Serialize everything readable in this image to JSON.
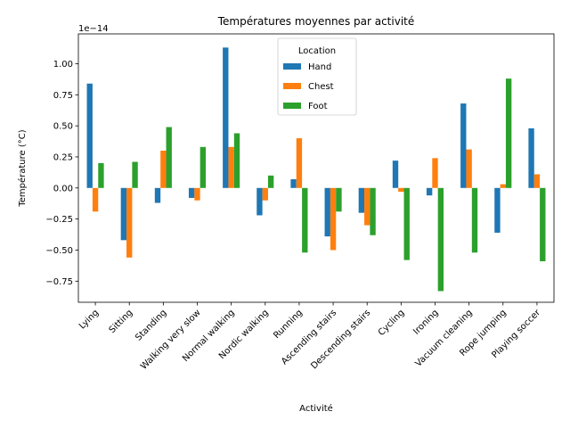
{
  "chart_data": {
    "type": "bar",
    "title": "Températures moyennes par activité",
    "xlabel": "Activité",
    "ylabel": "Température (°C)",
    "y_offset_label": "1e−14",
    "y_scale": 1e-14,
    "ylim": [
      -0.92,
      1.24
    ],
    "yticks": [
      -0.75,
      -0.5,
      -0.25,
      0.0,
      0.25,
      0.5,
      0.75,
      1.0
    ],
    "ytick_labels": [
      "−0.75",
      "−0.50",
      "−0.25",
      "0.00",
      "0.25",
      "0.50",
      "0.75",
      "1.00"
    ],
    "categories": [
      "Lying",
      "Sitting",
      "Standing",
      "Walking very slow",
      "Normal walking",
      "Nordic walking",
      "Running",
      "Ascending stairs",
      "Descending stairs",
      "Cycling",
      "Ironing",
      "Vacuum cleaning",
      "Rope jumping",
      "Playing soccer"
    ],
    "legend_title": "Location",
    "legend_position": "upper center",
    "grid": false,
    "series": [
      {
        "name": "Hand",
        "color": "#1f77b4",
        "values": [
          0.84,
          -0.42,
          -0.12,
          -0.08,
          1.13,
          -0.22,
          0.07,
          -0.39,
          -0.2,
          0.22,
          -0.06,
          0.68,
          -0.36,
          0.48
        ]
      },
      {
        "name": "Chest",
        "color": "#ff7f0e",
        "values": [
          -0.19,
          -0.56,
          0.3,
          -0.1,
          0.33,
          -0.1,
          0.4,
          -0.5,
          -0.3,
          -0.03,
          0.24,
          0.31,
          0.03,
          0.11
        ]
      },
      {
        "name": "Foot",
        "color": "#2ca02c",
        "values": [
          0.2,
          0.21,
          0.49,
          0.33,
          0.44,
          0.1,
          -0.52,
          -0.19,
          -0.38,
          -0.58,
          -0.83,
          -0.52,
          0.88,
          -0.59
        ]
      }
    ]
  }
}
